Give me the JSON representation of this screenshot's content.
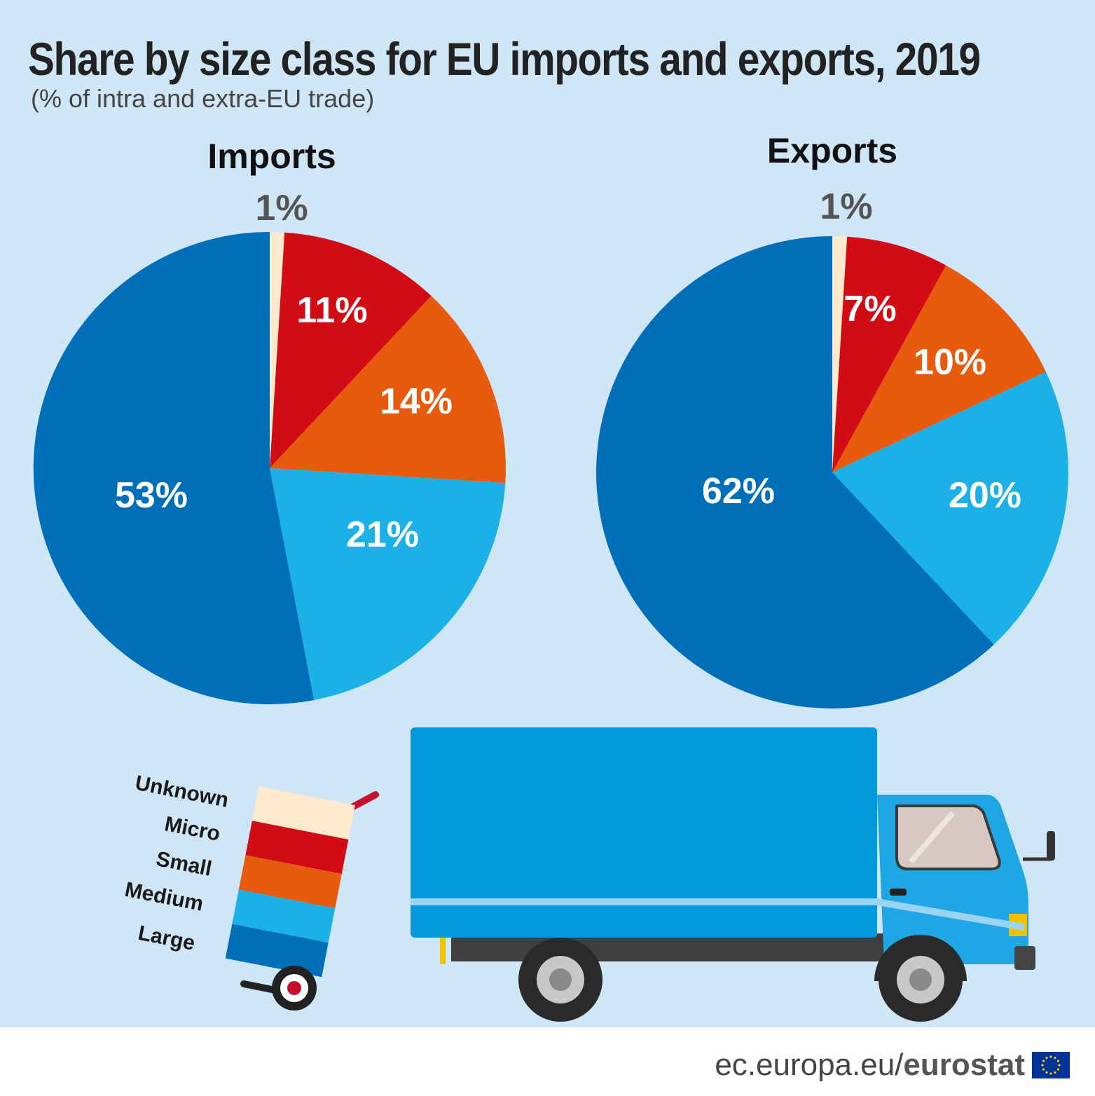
{
  "header": {
    "title": "Share by size class for EU imports and exports, 2019",
    "subtitle": "(% of intra and extra-EU trade)"
  },
  "colors": {
    "Unknown": "#fde9cb",
    "Micro": "#d20c14",
    "Small": "#e85a0e",
    "Medium": "#1bb1e7",
    "Large": "#006fba",
    "background": "#cfe6f7"
  },
  "chart_data": [
    {
      "type": "pie",
      "title": "Imports",
      "categories": [
        "Unknown",
        "Micro",
        "Small",
        "Medium",
        "Large"
      ],
      "values": [
        1,
        11,
        14,
        21,
        53
      ],
      "labels": [
        "1%",
        "11%",
        "14%",
        "21%",
        "53%"
      ]
    },
    {
      "type": "pie",
      "title": "Exports",
      "categories": [
        "Unknown",
        "Micro",
        "Small",
        "Medium",
        "Large"
      ],
      "values": [
        1,
        7,
        10,
        20,
        62
      ],
      "labels": [
        "1%",
        "7%",
        "10%",
        "20%",
        "62%"
      ]
    }
  ],
  "legend": [
    "Unknown",
    "Micro",
    "Small",
    "Medium",
    "Large"
  ],
  "footer": {
    "domain": "ec.europa.eu/",
    "brand": "eurostat"
  }
}
